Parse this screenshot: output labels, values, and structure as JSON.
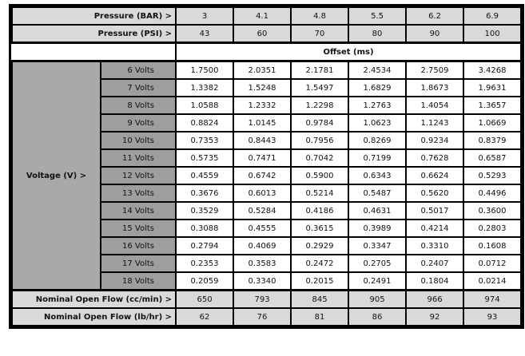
{
  "header": {
    "pressure_bar_label": "Pressure (BAR) >",
    "pressure_bar": [
      "3",
      "4.1",
      "4.8",
      "5.5",
      "6.2",
      "6.9"
    ],
    "pressure_psi_label": "Pressure (PSI) >",
    "pressure_psi": [
      "43",
      "60",
      "70",
      "80",
      "90",
      "100"
    ],
    "offset_label": "Offset (ms)"
  },
  "voltage_label": "Voltage (V) >",
  "rows": [
    {
      "volts": "6 Volts",
      "values": [
        "1.7500",
        "2.0351",
        "2.1781",
        "2.4534",
        "2.7509",
        "3.4268"
      ]
    },
    {
      "volts": "7 Volts",
      "values": [
        "1.3382",
        "1.5248",
        "1.5497",
        "1.6829",
        "1.8673",
        "1.9631"
      ]
    },
    {
      "volts": "8 Volts",
      "values": [
        "1.0588",
        "1.2332",
        "1.2298",
        "1.2763",
        "1.4054",
        "1.3657"
      ]
    },
    {
      "volts": "9 Volts",
      "values": [
        "0.8824",
        "1.0145",
        "0.9784",
        "1.0623",
        "1.1243",
        "1.0669"
      ]
    },
    {
      "volts": "10 Volts",
      "values": [
        "0.7353",
        "0.8443",
        "0.7956",
        "0.8269",
        "0.9234",
        "0.8379"
      ]
    },
    {
      "volts": "11 Volts",
      "values": [
        "0.5735",
        "0.7471",
        "0.7042",
        "0.7199",
        "0.7628",
        "0.6587"
      ]
    },
    {
      "volts": "12 Volts",
      "values": [
        "0.4559",
        "0.6742",
        "0.5900",
        "0.6343",
        "0.6624",
        "0.5293"
      ]
    },
    {
      "volts": "13 Volts",
      "values": [
        "0.3676",
        "0.6013",
        "0.5214",
        "0.5487",
        "0.5620",
        "0.4496"
      ]
    },
    {
      "volts": "14 Volts",
      "values": [
        "0.3529",
        "0.5284",
        "0.4186",
        "0.4631",
        "0.5017",
        "0.3600"
      ]
    },
    {
      "volts": "15 Volts",
      "values": [
        "0.3088",
        "0.4555",
        "0.3615",
        "0.3989",
        "0.4214",
        "0.2803"
      ]
    },
    {
      "volts": "16 Volts",
      "values": [
        "0.2794",
        "0.4069",
        "0.2929",
        "0.3347",
        "0.3310",
        "0.1608"
      ]
    },
    {
      "volts": "17 Volts",
      "values": [
        "0.2353",
        "0.3583",
        "0.2472",
        "0.2705",
        "0.2407",
        "0.0712"
      ]
    },
    {
      "volts": "18 Volts",
      "values": [
        "0.2059",
        "0.3340",
        "0.2015",
        "0.2491",
        "0.1804",
        "0.0214"
      ]
    }
  ],
  "footer": {
    "flow_cc_label": "Nominal Open Flow (cc/min) >",
    "flow_cc": [
      "650",
      "793",
      "845",
      "905",
      "966",
      "974"
    ],
    "flow_lb_label": "Nominal Open Flow (lb/hr) >",
    "flow_lb": [
      "62",
      "76",
      "81",
      "86",
      "92",
      "93"
    ]
  }
}
